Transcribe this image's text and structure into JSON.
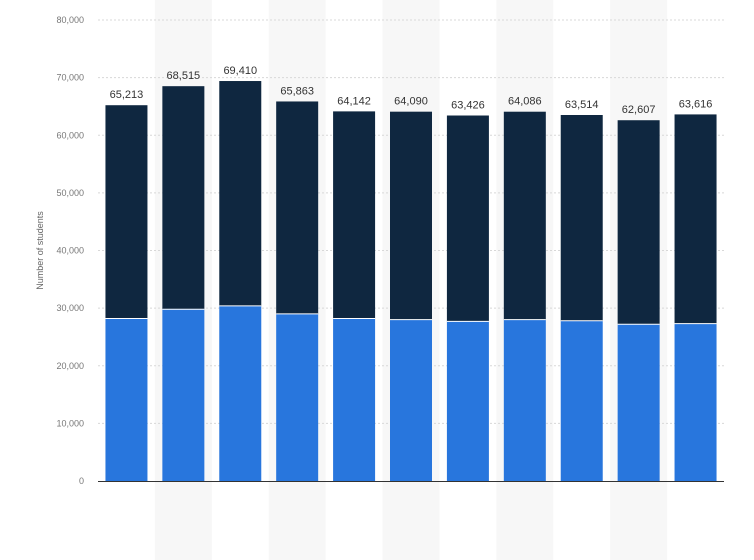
{
  "chart_data": {
    "type": "bar",
    "stacked": true,
    "title": "",
    "xlabel": "",
    "ylabel": "Number of students",
    "ylim": [
      0,
      80000
    ],
    "y_ticks": [
      0,
      10000,
      20000,
      30000,
      40000,
      50000,
      60000,
      70000,
      80000
    ],
    "y_tick_labels": [
      "0",
      "10,000",
      "20,000",
      "30,000",
      "40,000",
      "50,000",
      "60,000",
      "70,000",
      "80,000"
    ],
    "categories": [
      "",
      "",
      "",
      "",
      "",
      "",
      "",
      "",
      "",
      "",
      ""
    ],
    "series": [
      {
        "color": "#2876dd",
        "values": [
          28200,
          29800,
          30400,
          29000,
          28200,
          28000,
          27700,
          28000,
          27800,
          27200,
          27300
        ]
      },
      {
        "color": "#0f2740",
        "values": [
          37013,
          38715,
          39010,
          36863,
          35942,
          36090,
          35726,
          36086,
          35714,
          35407,
          36316
        ]
      }
    ],
    "totals": [
      65213,
      68515,
      69410,
      65863,
      64142,
      64090,
      63426,
      64086,
      63514,
      62607,
      63616
    ],
    "total_labels": [
      "65,213",
      "68,515",
      "69,410",
      "65,863",
      "64,142",
      "64,090",
      "63,426",
      "64,086",
      "63,514",
      "62,607",
      "63,616"
    ],
    "grid": true,
    "alternating_column_bands": true,
    "legend": "none"
  }
}
